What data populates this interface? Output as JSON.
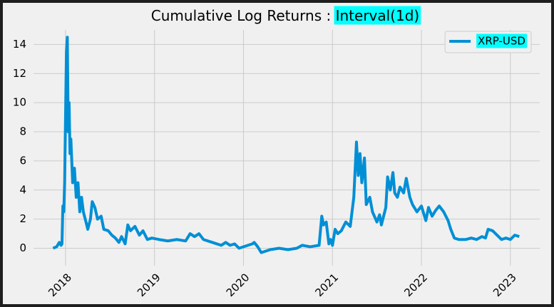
{
  "chart_data": {
    "type": "line",
    "title": "Cumulative Log Returns :",
    "title_box": "Interval(1d)",
    "xlim": [
      2017.64,
      2023.33
    ],
    "ylim": [
      -1.2,
      15.0
    ],
    "xticks": [
      2018,
      2019,
      2020,
      2021,
      2022,
      2023
    ],
    "yticks": [
      0,
      2,
      4,
      6,
      8,
      10,
      12,
      14
    ],
    "grid": true,
    "legend": "upper right",
    "x": [
      2017.86,
      2017.9,
      2017.93,
      2017.95,
      2017.96,
      2017.97,
      2017.98,
      2017.99,
      2018.0,
      2018.01,
      2018.02,
      2018.03,
      2018.04,
      2018.05,
      2018.06,
      2018.08,
      2018.1,
      2018.12,
      2018.14,
      2018.16,
      2018.18,
      2018.2,
      2018.23,
      2018.25,
      2018.28,
      2018.3,
      2018.33,
      2018.36,
      2018.4,
      2018.43,
      2018.48,
      2018.52,
      2018.56,
      2018.6,
      2018.63,
      2018.67,
      2018.7,
      2018.73,
      2018.78,
      2018.83,
      2018.87,
      2018.92,
      2018.97,
      2019.05,
      2019.15,
      2019.25,
      2019.35,
      2019.4,
      2019.45,
      2019.5,
      2019.55,
      2019.65,
      2019.75,
      2019.8,
      2019.85,
      2019.9,
      2019.95,
      2020.05,
      2020.1,
      2020.12,
      2020.16,
      2020.2,
      2020.3,
      2020.4,
      2020.5,
      2020.6,
      2020.66,
      2020.75,
      2020.85,
      2020.88,
      2020.9,
      2020.93,
      2020.96,
      2020.98,
      2021.0,
      2021.03,
      2021.06,
      2021.1,
      2021.15,
      2021.2,
      2021.24,
      2021.27,
      2021.29,
      2021.31,
      2021.33,
      2021.36,
      2021.38,
      2021.42,
      2021.45,
      2021.5,
      2021.53,
      2021.55,
      2021.6,
      2021.62,
      2021.65,
      2021.68,
      2021.7,
      2021.73,
      2021.76,
      2021.8,
      2021.83,
      2021.87,
      2021.9,
      2021.95,
      2022.0,
      2022.05,
      2022.08,
      2022.12,
      2022.16,
      2022.2,
      2022.25,
      2022.3,
      2022.33,
      2022.37,
      2022.42,
      2022.5,
      2022.56,
      2022.62,
      2022.68,
      2022.72,
      2022.75,
      2022.8,
      2022.85,
      2022.9,
      2022.95,
      2023.0,
      2023.05,
      2023.1
    ],
    "series": [
      {
        "name": "XRP-USD",
        "color": "#008fd5",
        "values": [
          0.0,
          0.1,
          0.4,
          0.2,
          0.3,
          2.9,
          2.5,
          4.5,
          9.0,
          13.5,
          14.5,
          8.0,
          10.0,
          6.5,
          7.5,
          4.5,
          5.5,
          3.5,
          4.5,
          2.5,
          3.5,
          2.5,
          1.8,
          1.3,
          2.0,
          3.2,
          2.8,
          2.0,
          2.2,
          1.3,
          1.2,
          0.9,
          0.7,
          0.4,
          0.8,
          0.3,
          1.6,
          1.2,
          1.5,
          0.9,
          1.2,
          0.6,
          0.7,
          0.6,
          0.5,
          0.6,
          0.5,
          1.0,
          0.8,
          1.0,
          0.6,
          0.4,
          0.2,
          0.4,
          0.2,
          0.3,
          0.0,
          0.2,
          0.3,
          0.4,
          0.1,
          -0.3,
          -0.1,
          0.0,
          -0.1,
          0.0,
          0.2,
          0.1,
          0.2,
          2.2,
          1.6,
          1.8,
          0.3,
          0.6,
          0.2,
          1.3,
          1.0,
          1.2,
          1.8,
          1.5,
          3.5,
          7.3,
          5.0,
          6.5,
          4.5,
          6.2,
          3.0,
          3.5,
          2.5,
          1.8,
          2.3,
          1.6,
          2.8,
          4.9,
          4.0,
          5.2,
          3.8,
          3.5,
          4.2,
          3.8,
          4.8,
          3.5,
          3.0,
          2.5,
          2.9,
          1.9,
          2.8,
          2.2,
          2.6,
          2.9,
          2.5,
          1.9,
          1.3,
          0.7,
          0.6,
          0.6,
          0.7,
          0.6,
          0.8,
          0.7,
          1.3,
          1.2,
          0.9,
          0.6,
          0.7,
          0.6,
          0.9,
          0.8
        ]
      }
    ]
  }
}
